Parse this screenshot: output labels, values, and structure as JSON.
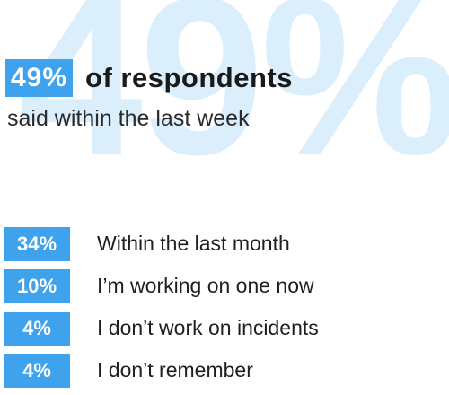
{
  "background_value": "49%",
  "headline": {
    "value": "49%",
    "text": "of respondents"
  },
  "subtitle": "said within the last week",
  "items": [
    {
      "value": "34%",
      "label": "Within the last month"
    },
    {
      "value": "10%",
      "label": "I’m working on one now"
    },
    {
      "value": "4%",
      "label": "I don’t work on incidents"
    },
    {
      "value": "4%",
      "label": "I don’t remember"
    }
  ],
  "colors": {
    "accent": "#3ea2ec",
    "watermark": "#dbeefc",
    "text": "#1a1a1a"
  },
  "chart_data": {
    "type": "table",
    "highlight": {
      "value": 49,
      "unit": "%",
      "label": "said within the last week"
    },
    "categories": [
      "Within the last month",
      "I’m working on one now",
      "I don’t work on incidents",
      "I don’t remember"
    ],
    "values": [
      34,
      10,
      4,
      4
    ]
  }
}
